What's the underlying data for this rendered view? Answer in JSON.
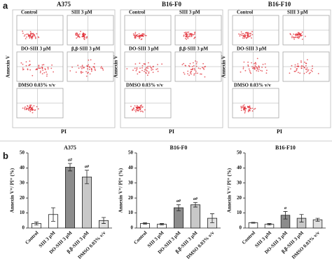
{
  "panel_a": {
    "label": "a",
    "groups": [
      {
        "title": "A375",
        "plots": [
          "Control",
          "SIII 3 μM",
          "DO-SIII 3 μM",
          "β,β-SIII 3 μM",
          "DMSO 0.03% v/v"
        ],
        "y_label": "Annexin V",
        "x_label": "PI"
      },
      {
        "title": "B16-F0",
        "plots": [
          "Control",
          "SIII 3 μM",
          "DO-SIII 3 μM",
          "β,β-SIII 3 μM",
          "DMSO 0.03% v/v"
        ],
        "y_label": "Annexin V",
        "x_label": "PI"
      },
      {
        "title": "B16-F10",
        "plots": [
          "Control",
          "SIII 3 μM",
          "DO-SIII 3 μM",
          null,
          "DMSO 0.03% v/v"
        ],
        "y_label": "Annexin V",
        "x_label": "PI"
      }
    ]
  },
  "panel_b": {
    "label": "b"
  },
  "chart_data": [
    {
      "type": "bar",
      "title": "A375",
      "y_label": "Annexin V⁺/ PI⁺ (%)",
      "categories": [
        "Control",
        "SIII 3 μM",
        "DO-SIII 3 μM",
        "β,β-SIII 3 μM",
        "DMSO 0.03% v/v"
      ],
      "values": [
        3,
        9,
        40.5,
        34,
        5
      ],
      "errors": [
        1,
        4.5,
        2.5,
        4.5,
        2
      ],
      "colors": [
        "#ffffff",
        "#ffffff",
        "#8c8c8c",
        "#c8c8c8",
        "#e0e0e0"
      ],
      "annotations": [
        {
          "category_index": 2,
          "text": "a#"
        },
        {
          "category_index": 3,
          "text": "a#"
        }
      ],
      "ylim": [
        0,
        50
      ],
      "yticks": [
        0,
        10,
        20,
        30,
        40,
        50
      ]
    },
    {
      "type": "bar",
      "title": "B16-F0",
      "y_label": "Annexin V⁺/ PI⁺ (%)",
      "categories": [
        "Control",
        "SIII 3 μM",
        "DO-SIII 3 μM",
        "β,β-SIII 3 μM",
        "DMSO 0.03% v/v"
      ],
      "values": [
        3,
        2.5,
        13.5,
        15.5,
        6.5
      ],
      "errors": [
        0.5,
        0.5,
        2,
        1.5,
        3
      ],
      "colors": [
        "#ffffff",
        "#ffffff",
        "#8c8c8c",
        "#c8c8c8",
        "#e0e0e0"
      ],
      "annotations": [
        {
          "category_index": 2,
          "text": "a#"
        },
        {
          "category_index": 3,
          "text": "a#"
        }
      ],
      "ylim": [
        0,
        50
      ],
      "yticks": [
        0,
        10,
        20,
        30,
        40,
        50
      ]
    },
    {
      "type": "bar",
      "title": "B16-F10",
      "y_label": "Annexin V⁺/ PI⁺ (%)",
      "categories": [
        "Control",
        "SIII 3 μM",
        "DO-SIII 3 μM",
        "β,β-SIII 3 μM",
        "DMSO 0.03% v/v"
      ],
      "values": [
        3.5,
        2.5,
        8.5,
        6.5,
        5.5
      ],
      "errors": [
        0.3,
        0.5,
        2.5,
        2.5,
        1
      ],
      "colors": [
        "#ffffff",
        "#ffffff",
        "#8c8c8c",
        "#c8c8c8",
        "#e0e0e0"
      ],
      "annotations": [
        {
          "category_index": 2,
          "text": "a"
        }
      ],
      "ylim": [
        0,
        50
      ],
      "yticks": [
        0,
        10,
        20,
        30,
        40,
        50
      ]
    }
  ]
}
